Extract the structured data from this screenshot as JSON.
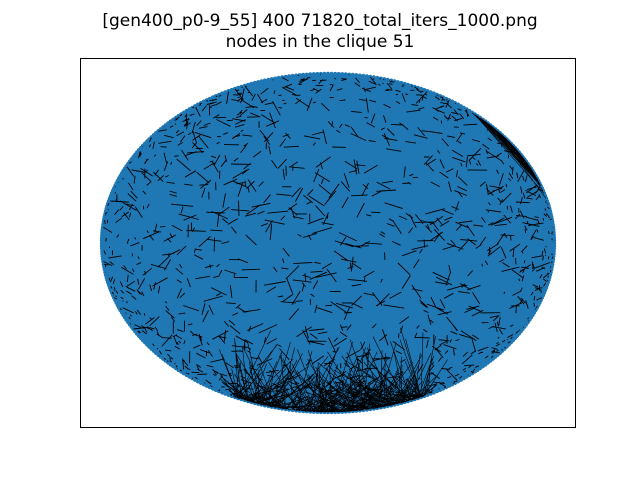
{
  "figure": {
    "title_line_1": "[gen400_p0-9_55] 400 71820_total_iters_1000.png",
    "title_line_2": "nodes in the clique 51"
  },
  "graph": {
    "node_count": 400,
    "edge_count": 71820,
    "clique_size": 51,
    "node_color": "#1f77b4",
    "edge_color": "#000000",
    "layout": "circular",
    "axes_ticks": false
  }
}
